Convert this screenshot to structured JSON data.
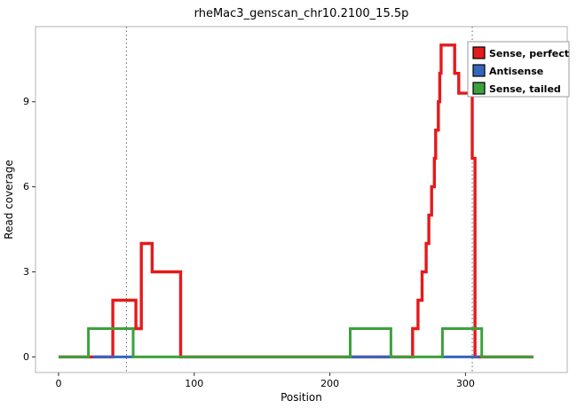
{
  "chart_data": {
    "type": "line",
    "subtype": "step-coverage",
    "title": "rheMac3_genscan_chr10.2100_15.5p",
    "xlabel": "Position",
    "ylabel": "Read coverage",
    "xlim": [
      -17,
      375
    ],
    "ylim": [
      -0.55,
      11.65
    ],
    "xticks": [
      0,
      100,
      200,
      300
    ],
    "yticks": [
      0,
      3,
      6,
      9
    ],
    "grid": false,
    "panel_border_color": "#b3b3b3",
    "vlines": {
      "positions": [
        50,
        305
      ],
      "style": "dotted",
      "color": "#606060"
    },
    "legend": {
      "position": "top-right",
      "border_color": "#9a9a9a",
      "entries": [
        {
          "label": "Sense, perfect",
          "color": "#e41a1c"
        },
        {
          "label": "Antisense",
          "color": "#3566bd"
        },
        {
          "label": "Sense, tailed",
          "color": "#3ca13c"
        }
      ]
    },
    "series": [
      {
        "name": "Sense, perfect",
        "color": "#e41a1c",
        "width": 3.4,
        "paths": [
          [
            [
              0,
              0
            ],
            [
              40,
              0
            ],
            [
              40,
              2
            ],
            [
              57,
              2
            ],
            [
              57,
              1
            ],
            [
              61,
              1
            ],
            [
              61,
              4
            ],
            [
              69,
              4
            ],
            [
              69,
              3
            ],
            [
              90,
              3
            ],
            [
              90,
              0
            ],
            [
              261,
              0
            ],
            [
              261,
              1
            ],
            [
              265,
              1
            ],
            [
              265,
              2
            ],
            [
              268,
              2
            ],
            [
              268,
              3
            ],
            [
              271,
              3
            ],
            [
              271,
              4
            ],
            [
              273,
              4
            ],
            [
              273,
              5
            ],
            [
              275,
              5
            ],
            [
              275,
              6
            ],
            [
              277,
              6
            ],
            [
              277,
              7
            ],
            [
              278,
              7
            ],
            [
              278,
              8
            ],
            [
              280,
              8
            ],
            [
              280,
              9
            ],
            [
              281,
              9
            ],
            [
              281,
              10
            ],
            [
              282,
              10
            ],
            [
              282,
              11
            ],
            [
              292,
              11
            ],
            [
              292,
              10
            ],
            [
              295,
              10
            ],
            [
              295,
              9.3
            ],
            [
              305,
              9.3
            ],
            [
              305,
              7
            ],
            [
              307,
              7
            ],
            [
              307,
              0
            ],
            [
              350,
              0
            ]
          ]
        ]
      },
      {
        "name": "Antisense",
        "color": "#3566bd",
        "width": 3,
        "paths": [
          [
            [
              25,
              0
            ],
            [
              55,
              0
            ]
          ],
          [
            [
              214,
              0
            ],
            [
              247,
              0
            ]
          ],
          [
            [
              281,
              0
            ],
            [
              310,
              0
            ]
          ]
        ]
      },
      {
        "name": "Sense, tailed",
        "color": "#3ca13c",
        "width": 3,
        "paths": [
          [
            [
              0,
              0
            ],
            [
              22,
              0
            ],
            [
              22,
              1
            ],
            [
              55,
              1
            ],
            [
              55,
              0
            ],
            [
              215,
              0
            ],
            [
              215,
              1
            ],
            [
              245,
              1
            ],
            [
              245,
              0
            ],
            [
              283,
              0
            ],
            [
              283,
              1
            ],
            [
              312,
              1
            ],
            [
              312,
              0
            ],
            [
              350,
              0
            ]
          ]
        ]
      }
    ]
  }
}
